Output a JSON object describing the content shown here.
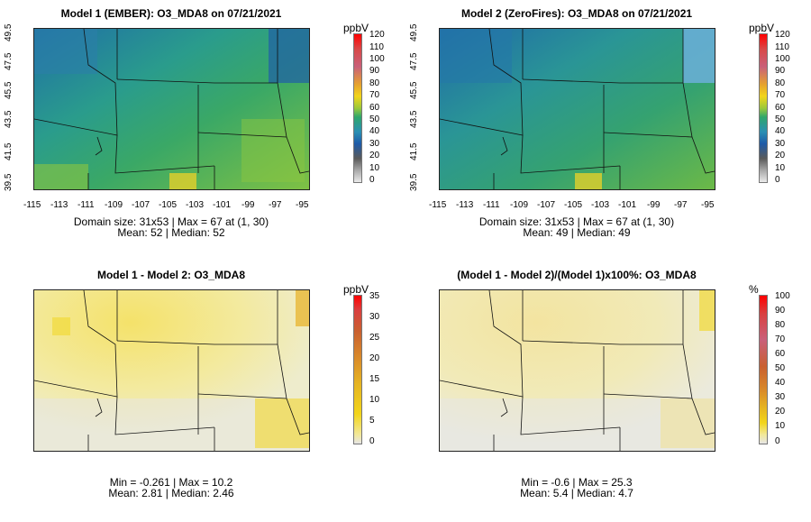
{
  "panels": [
    {
      "title": "Model 1 (EMBER): O3_MDA8 on 07/21/2021",
      "unit": "ppbV",
      "stats_line1": "Domain size: 31x53 | Max = 67 at (1, 30)",
      "stats_line2": "Mean: 52 |  Median: 52",
      "y_labels": [
        "49.5",
        "47.5",
        "45.5",
        "43.5",
        "41.5",
        "39.5"
      ],
      "x_labels": [
        "-115",
        "-113",
        "-111",
        "-109",
        "-107",
        "-105",
        "-103",
        "-101",
        "-99",
        "-97",
        "-95"
      ],
      "colorbar_ticks": [
        "120",
        "110",
        "100",
        "90",
        "80",
        "70",
        "60",
        "50",
        "40",
        "30",
        "20",
        "10",
        "0"
      ],
      "palette": "ozone"
    },
    {
      "title": "Model 2 (ZeroFires): O3_MDA8 on 07/21/2021",
      "unit": "ppbV",
      "stats_line1": "Domain size: 31x53 | Max = 67 at (1, 30)",
      "stats_line2": "Mean: 49 |  Median: 49",
      "y_labels": [
        "49.5",
        "47.5",
        "45.5",
        "43.5",
        "41.5",
        "39.5"
      ],
      "x_labels": [
        "-115",
        "-113",
        "-111",
        "-109",
        "-107",
        "-105",
        "-103",
        "-101",
        "-99",
        "-97",
        "-95"
      ],
      "colorbar_ticks": [
        "120",
        "110",
        "100",
        "90",
        "80",
        "70",
        "60",
        "50",
        "40",
        "30",
        "20",
        "10",
        "0"
      ],
      "palette": "ozone"
    },
    {
      "title": "Model 1 - Model 2: O3_MDA8",
      "unit": "ppbV",
      "stats_line1": "Min = -0.261 | Max = 10.2",
      "stats_line2": "Mean: 2.81 |  Median: 2.46",
      "colorbar_ticks": [
        "35",
        "30",
        "25",
        "20",
        "15",
        "10",
        "5",
        "0"
      ],
      "palette": "diff"
    },
    {
      "title": "(Model 1 - Model 2)/(Model 1)x100%: O3_MDA8",
      "unit": "%",
      "stats_line1": "Min = -0.6 | Max = 25.3",
      "stats_line2": "Mean: 5.4 |  Median: 4.7",
      "colorbar_ticks": [
        "100",
        "90",
        "80",
        "70",
        "60",
        "50",
        "40",
        "30",
        "20",
        "10",
        "0"
      ],
      "palette": "diff"
    }
  ],
  "colors": {
    "ozone_gradient": [
      "#e9e9e9",
      "#b7b7b7",
      "#7a7a7a",
      "#1e5aa8",
      "#2a8fb3",
      "#2ea66b",
      "#9bc93a",
      "#f2d51a",
      "#e6a22e",
      "#d9783a",
      "#c9607a",
      "#e23a3a",
      "#ff0000"
    ],
    "diff_gradient": [
      "#e6e6e6",
      "#f3e98a",
      "#f2d51a",
      "#e6b522",
      "#d98a2a",
      "#c96030",
      "#d94040",
      "#ff0000"
    ]
  }
}
